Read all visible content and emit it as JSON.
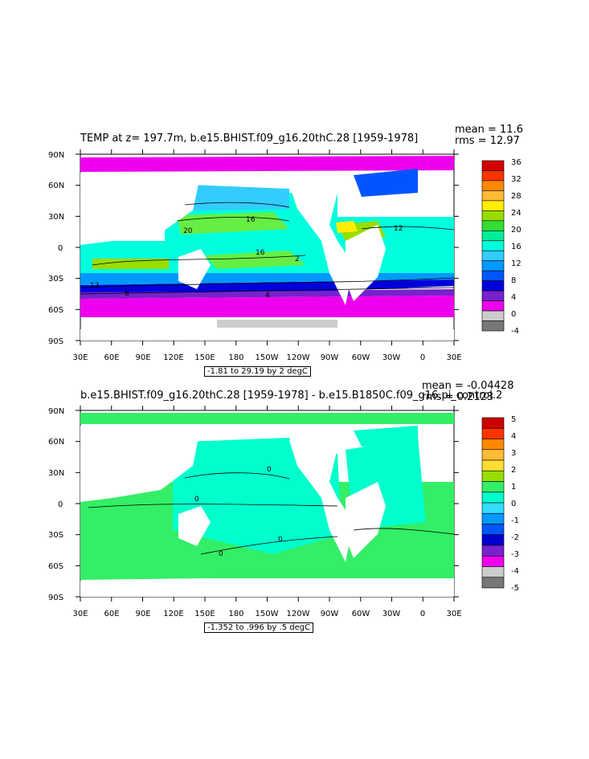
{
  "panels": [
    {
      "title": "TEMP at z= 197.7m, b.e15.BHIST.f09_g16.20thC.28 [1959-1978]",
      "stat1": "mean = 11.6",
      "stat2": "rms = 12.97",
      "range_label": "-1.81 to 29.19 by 2 degC",
      "colorbar_labels": [
        "36",
        "32",
        "28",
        "24",
        "20",
        "16",
        "12",
        "8",
        "4",
        "0",
        "-4"
      ],
      "contour_labels": [
        "16",
        "20",
        "16",
        "12",
        "8",
        "4",
        "12",
        "2"
      ]
    },
    {
      "title": "b.e15.BHIST.f09_g16.20thC.28 [1959-1978] - b.e15.B1850C.f09_g16.pi_control.2",
      "stat1": "mean = -0.04428",
      "stat2": "rms = 0.2123",
      "range_label": "-1.352 to .996 by .5 degC",
      "colorbar_labels": [
        "5",
        "4",
        "3",
        "2",
        "1",
        "0",
        "-1",
        "-2",
        "-3",
        "-4",
        "-5"
      ],
      "contour_labels": [
        "0",
        "0",
        "0",
        "0"
      ]
    }
  ],
  "axes": {
    "lat_labels": [
      "90N",
      "60N",
      "30N",
      "0",
      "30S",
      "60S",
      "90S"
    ],
    "lon_labels": [
      "30E",
      "60E",
      "90E",
      "120E",
      "150E",
      "180",
      "150W",
      "120W",
      "90W",
      "60W",
      "30W",
      "0",
      "30E"
    ]
  },
  "colors": {
    "temp_colorbar": [
      "#d40000",
      "#ff3300",
      "#ff8800",
      "#ffbb33",
      "#ffee00",
      "#99dd00",
      "#33dd33",
      "#00ee99",
      "#00ffdd",
      "#33ccff",
      "#0099ff",
      "#0055ff",
      "#0000dd",
      "#7722cc",
      "#ee00ee",
      "#cccccc",
      "#777777"
    ],
    "diff_colorbar": [
      "#cc0000",
      "#ff3300",
      "#ff8800",
      "#ffbb33",
      "#ffdd33",
      "#99dd00",
      "#33ee66",
      "#00ffcc",
      "#33ddff",
      "#0099ff",
      "#0055ff",
      "#0000cc",
      "#7722cc",
      "#ee00ee",
      "#cccccc",
      "#777777"
    ]
  }
}
